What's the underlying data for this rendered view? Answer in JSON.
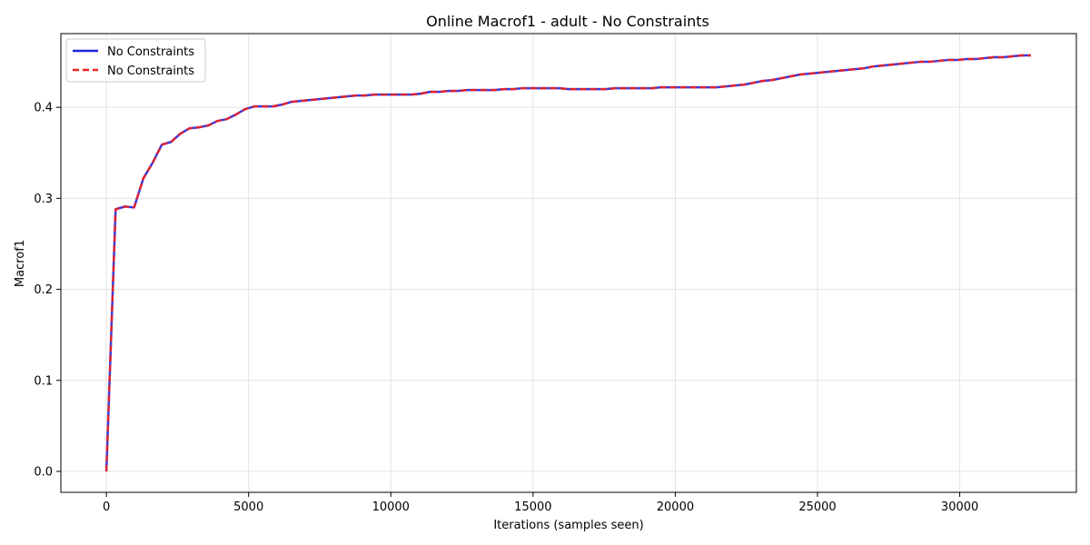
{
  "chart_data": {
    "type": "line",
    "title": "Online Macrof1 - adult - No Constraints",
    "xlabel": "Iterations (samples seen)",
    "ylabel": "Macrof1",
    "xlim": [
      -1600,
      34100
    ],
    "ylim": [
      -0.023,
      0.481
    ],
    "xticks": [
      0,
      5000,
      10000,
      15000,
      20000,
      25000,
      30000
    ],
    "xtick_labels": [
      "0",
      "5000",
      "10000",
      "15000",
      "20000",
      "25000",
      "30000"
    ],
    "yticks": [
      0.0,
      0.1,
      0.2,
      0.3,
      0.4
    ],
    "ytick_labels": [
      "0.0",
      "0.1",
      "0.2",
      "0.3",
      "0.4"
    ],
    "grid": true,
    "legend_position": "upper-left",
    "x": [
      0,
      325,
      650,
      975,
      1300,
      1625,
      1950,
      2275,
      2600,
      2925,
      3250,
      3575,
      3900,
      4225,
      4550,
      4875,
      5200,
      5525,
      5850,
      6175,
      6500,
      6825,
      7150,
      7475,
      7800,
      8125,
      8450,
      8775,
      9100,
      9425,
      9750,
      10075,
      10400,
      10725,
      11050,
      11375,
      11700,
      12025,
      12350,
      12675,
      13000,
      13325,
      13650,
      13975,
      14300,
      14625,
      14950,
      15275,
      15600,
      15925,
      16250,
      16575,
      16900,
      17225,
      17550,
      17875,
      18200,
      18525,
      18850,
      19175,
      19500,
      19825,
      20150,
      20475,
      20800,
      21125,
      21450,
      21775,
      22100,
      22425,
      22750,
      23075,
      23400,
      23725,
      24050,
      24375,
      24700,
      25025,
      25350,
      25675,
      26000,
      26325,
      26650,
      26975,
      27300,
      27625,
      27950,
      28275,
      28600,
      28925,
      29250,
      29575,
      29900,
      30225,
      30550,
      30875,
      31200,
      31525,
      31850,
      32175,
      32500
    ],
    "series": [
      {
        "name": "No Constraints",
        "color": "#2222dd",
        "style": "solid",
        "values": [
          0.0,
          0.288,
          0.291,
          0.29,
          0.322,
          0.339,
          0.359,
          0.362,
          0.371,
          0.377,
          0.378,
          0.38,
          0.385,
          0.387,
          0.392,
          0.398,
          0.401,
          0.401,
          0.401,
          0.403,
          0.406,
          0.407,
          0.408,
          0.409,
          0.41,
          0.411,
          0.412,
          0.413,
          0.413,
          0.414,
          0.414,
          0.414,
          0.414,
          0.414,
          0.415,
          0.417,
          0.417,
          0.418,
          0.418,
          0.419,
          0.419,
          0.419,
          0.419,
          0.42,
          0.42,
          0.421,
          0.421,
          0.421,
          0.421,
          0.421,
          0.42,
          0.42,
          0.42,
          0.42,
          0.42,
          0.421,
          0.421,
          0.421,
          0.421,
          0.421,
          0.422,
          0.422,
          0.422,
          0.422,
          0.422,
          0.422,
          0.422,
          0.423,
          0.424,
          0.425,
          0.427,
          0.429,
          0.43,
          0.432,
          0.434,
          0.436,
          0.437,
          0.438,
          0.439,
          0.44,
          0.441,
          0.442,
          0.443,
          0.445,
          0.446,
          0.447,
          0.448,
          0.449,
          0.45,
          0.45,
          0.451,
          0.452,
          0.452,
          0.453,
          0.453,
          0.454,
          0.455,
          0.455,
          0.456,
          0.457,
          0.457
        ]
      },
      {
        "name": "No Constraints",
        "color": "#ee2222",
        "style": "dashed",
        "values": [
          0.0,
          0.288,
          0.291,
          0.29,
          0.322,
          0.339,
          0.359,
          0.362,
          0.371,
          0.377,
          0.378,
          0.38,
          0.385,
          0.387,
          0.392,
          0.398,
          0.401,
          0.401,
          0.401,
          0.403,
          0.406,
          0.407,
          0.408,
          0.409,
          0.41,
          0.411,
          0.412,
          0.413,
          0.413,
          0.414,
          0.414,
          0.414,
          0.414,
          0.414,
          0.415,
          0.417,
          0.417,
          0.418,
          0.418,
          0.419,
          0.419,
          0.419,
          0.419,
          0.42,
          0.42,
          0.421,
          0.421,
          0.421,
          0.421,
          0.421,
          0.42,
          0.42,
          0.42,
          0.42,
          0.42,
          0.421,
          0.421,
          0.421,
          0.421,
          0.421,
          0.422,
          0.422,
          0.422,
          0.422,
          0.422,
          0.422,
          0.422,
          0.423,
          0.424,
          0.425,
          0.427,
          0.429,
          0.43,
          0.432,
          0.434,
          0.436,
          0.437,
          0.438,
          0.439,
          0.44,
          0.441,
          0.442,
          0.443,
          0.445,
          0.446,
          0.447,
          0.448,
          0.449,
          0.45,
          0.45,
          0.451,
          0.452,
          0.452,
          0.453,
          0.453,
          0.454,
          0.455,
          0.455,
          0.456,
          0.457,
          0.457
        ]
      }
    ]
  }
}
